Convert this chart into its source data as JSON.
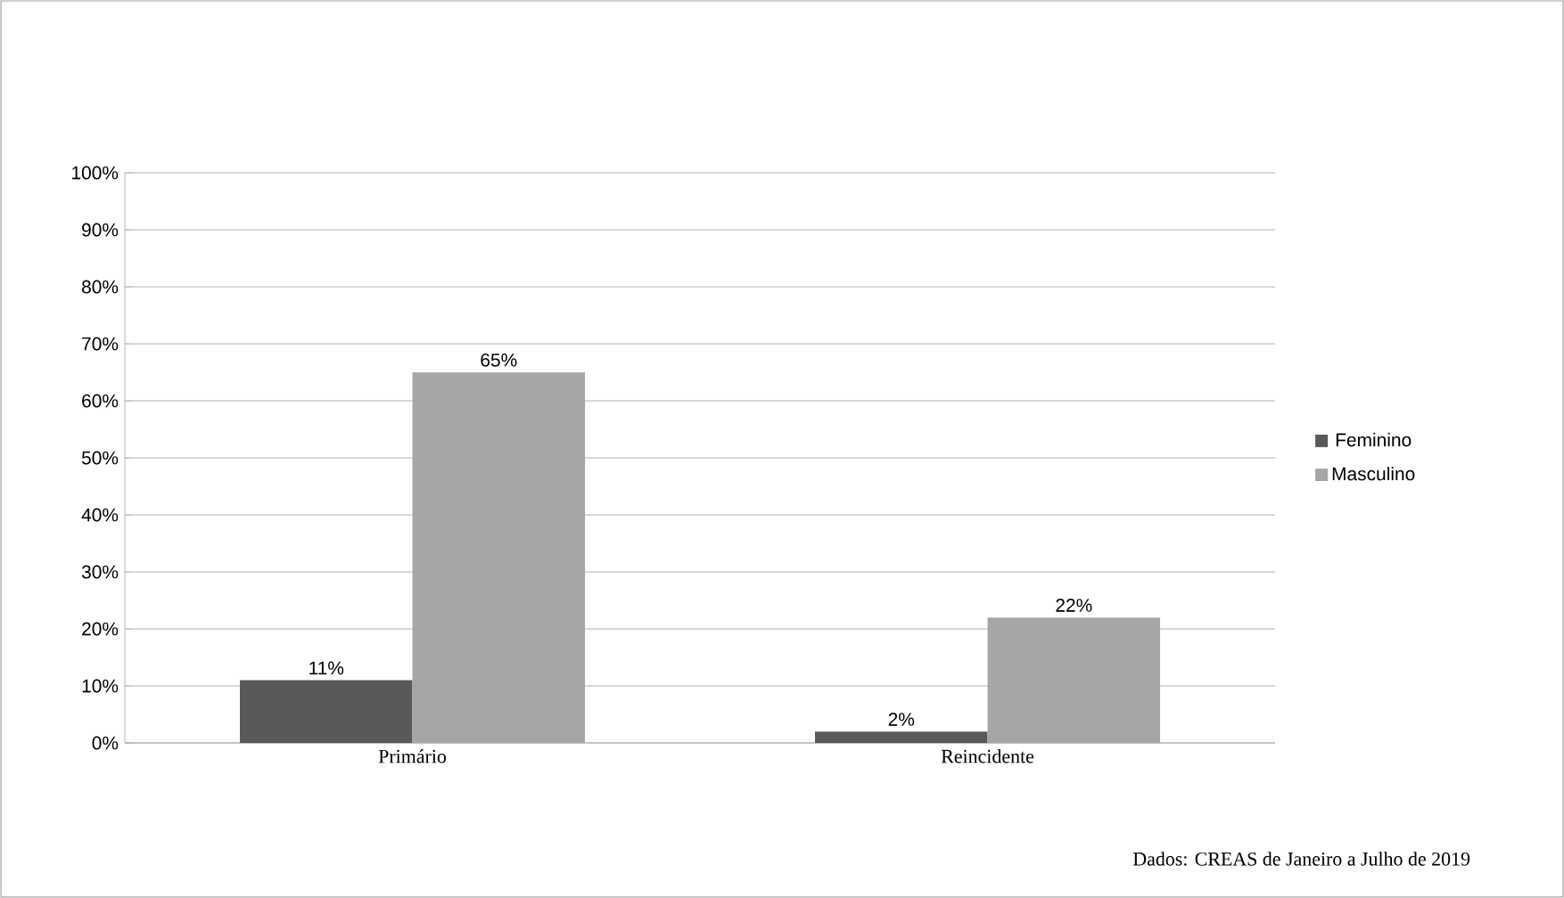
{
  "chart_data": {
    "type": "bar",
    "categories": [
      "Primário",
      "Reincidente"
    ],
    "series": [
      {
        "name": "Feminino",
        "color": "#595959",
        "values": [
          11,
          2
        ],
        "value_labels": [
          "11%",
          "2%"
        ]
      },
      {
        "name": "Masculino",
        "color": "#a6a6a6",
        "values": [
          65,
          22
        ],
        "value_labels": [
          "65%",
          "22%"
        ]
      }
    ],
    "ylim": [
      0,
      100
    ],
    "yticks": [
      {
        "value": 0,
        "label": "0%"
      },
      {
        "value": 10,
        "label": "10%"
      },
      {
        "value": 20,
        "label": "20%"
      },
      {
        "value": 30,
        "label": "30%"
      },
      {
        "value": 40,
        "label": "40%"
      },
      {
        "value": 50,
        "label": "50%"
      },
      {
        "value": 60,
        "label": "60%"
      },
      {
        "value": 70,
        "label": "70%"
      },
      {
        "value": 80,
        "label": "80%"
      },
      {
        "value": 90,
        "label": "90%"
      },
      {
        "value": 100,
        "label": "100%"
      }
    ],
    "grid": "y",
    "legend": "right",
    "annotations": [
      "Dados: CREAS de Janeiro a Julho de 2019"
    ]
  }
}
